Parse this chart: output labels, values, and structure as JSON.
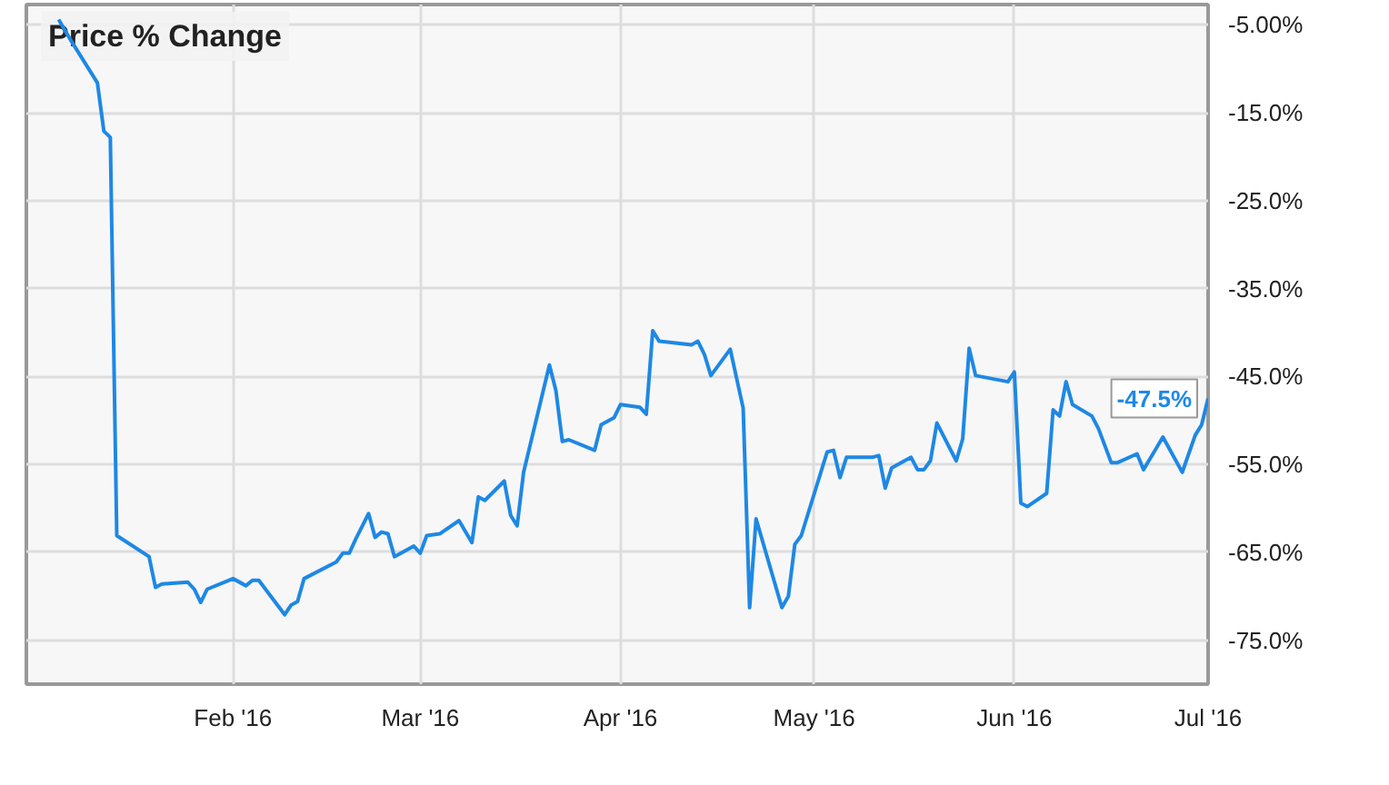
{
  "chart_data": {
    "type": "line",
    "title": "Price % Change",
    "x": [
      "2016-01-05",
      "2016-01-07",
      "2016-01-11",
      "2016-01-12",
      "2016-01-13",
      "2016-01-14",
      "2016-01-19",
      "2016-01-20",
      "2016-01-21",
      "2016-01-25",
      "2016-01-26",
      "2016-01-27",
      "2016-01-28",
      "2016-02-01",
      "2016-02-03",
      "2016-02-04",
      "2016-02-05",
      "2016-02-09",
      "2016-02-10",
      "2016-02-11",
      "2016-02-12",
      "2016-02-17",
      "2016-02-18",
      "2016-02-19",
      "2016-02-20",
      "2016-02-22",
      "2016-02-23",
      "2016-02-24",
      "2016-02-25",
      "2016-02-26",
      "2016-02-29",
      "2016-03-01",
      "2016-03-02",
      "2016-03-04",
      "2016-03-07",
      "2016-03-09",
      "2016-03-10",
      "2016-03-11",
      "2016-03-14",
      "2016-03-15",
      "2016-03-16",
      "2016-03-17",
      "2016-03-21",
      "2016-03-22",
      "2016-03-23",
      "2016-03-24",
      "2016-03-28",
      "2016-03-29",
      "2016-03-31",
      "2016-04-01",
      "2016-04-04",
      "2016-04-05",
      "2016-04-06",
      "2016-04-07",
      "2016-04-12",
      "2016-04-13",
      "2016-04-14",
      "2016-04-15",
      "2016-04-18",
      "2016-04-20",
      "2016-04-21",
      "2016-04-22",
      "2016-04-26",
      "2016-04-27",
      "2016-04-28",
      "2016-04-29",
      "2016-05-03",
      "2016-05-04",
      "2016-05-05",
      "2016-05-06",
      "2016-05-10",
      "2016-05-11",
      "2016-05-12",
      "2016-05-13",
      "2016-05-16",
      "2016-05-17",
      "2016-05-18",
      "2016-05-19",
      "2016-05-20",
      "2016-05-23",
      "2016-05-24",
      "2016-05-25",
      "2016-05-26",
      "2016-05-31",
      "2016-06-01",
      "2016-06-02",
      "2016-06-03",
      "2016-06-06",
      "2016-06-07",
      "2016-06-08",
      "2016-06-09",
      "2016-06-10",
      "2016-06-13",
      "2016-06-14",
      "2016-06-16",
      "2016-06-17",
      "2016-06-20",
      "2016-06-21",
      "2016-06-24",
      "2016-06-27",
      "2016-06-29",
      "2016-06-30",
      "2016-07-01"
    ],
    "series": [
      {
        "color": "#1e88e5",
        "values": [
          -4.4,
          -6.9,
          -11.6,
          -17.1,
          -17.8,
          -63.1,
          -65.5,
          -69.0,
          -68.6,
          -68.4,
          -69.2,
          -70.7,
          -69.2,
          -68.0,
          -68.8,
          -68.2,
          -68.2,
          -72.1,
          -71.0,
          -70.6,
          -68.0,
          -66.1,
          -65.1,
          -65.1,
          -63.5,
          -60.6,
          -63.3,
          -62.7,
          -62.9,
          -65.5,
          -64.3,
          -65.1,
          -63.1,
          -62.9,
          -61.4,
          -63.9,
          -58.7,
          -59.1,
          -56.9,
          -60.8,
          -62.0,
          -55.9,
          -43.7,
          -46.6,
          -52.4,
          -52.2,
          -53.4,
          -50.5,
          -49.7,
          -48.2,
          -48.5,
          -49.3,
          -39.8,
          -41.0,
          -41.4,
          -41.0,
          -42.5,
          -44.9,
          -41.9,
          -48.6,
          -71.3,
          -61.2,
          -71.3,
          -70.0,
          -64.1,
          -63.1,
          -53.6,
          -53.4,
          -56.5,
          -54.2,
          -54.2,
          -54.0,
          -57.7,
          -55.4,
          -54.2,
          -55.6,
          -55.6,
          -54.6,
          -50.3,
          -54.6,
          -52.1,
          -41.8,
          -44.9,
          -45.6,
          -44.5,
          -59.4,
          -59.8,
          -58.3,
          -48.8,
          -49.5,
          -45.6,
          -48.2,
          -49.5,
          -50.9,
          -54.8,
          -54.8,
          -53.8,
          -55.6,
          -51.9,
          -55.9,
          -51.7,
          -50.5,
          -47.5
        ]
      }
    ],
    "xlim": [
      "2015-12-31",
      "2016-07-01"
    ],
    "xticks": [
      {
        "value": "2016-02-01",
        "label": "Feb '16"
      },
      {
        "value": "2016-03-01",
        "label": "Mar '16"
      },
      {
        "value": "2016-04-01",
        "label": "Apr '16"
      },
      {
        "value": "2016-05-01",
        "label": "May '16"
      },
      {
        "value": "2016-06-01",
        "label": "Jun '16"
      },
      {
        "value": "2016-07-01",
        "label": "Jul '16"
      }
    ],
    "ylim": [
      -80,
      -2.7
    ],
    "yticks": [
      {
        "value": -5,
        "label": "-5.00%"
      },
      {
        "value": -15,
        "label": "-15.0%"
      },
      {
        "value": -25,
        "label": "-25.0%"
      },
      {
        "value": -35,
        "label": "-35.0%"
      },
      {
        "value": -45,
        "label": "-45.0%"
      },
      {
        "value": -55,
        "label": "-55.0%"
      },
      {
        "value": -65,
        "label": "-65.0%"
      },
      {
        "value": -75,
        "label": "-75.0%"
      }
    ],
    "grid": true,
    "marker": "none",
    "line_style": "solid",
    "annotations": [
      {
        "text": "-47.5%",
        "x": "2016-07-01",
        "y": -47.5
      }
    ]
  }
}
